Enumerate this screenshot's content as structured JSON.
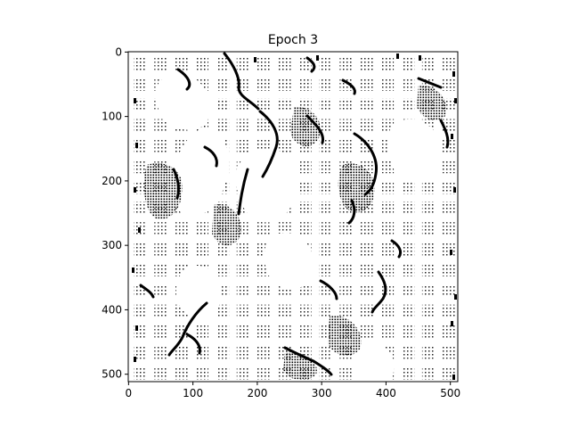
{
  "chart_data": {
    "type": "heatmap",
    "title": "Epoch 3",
    "xlabel": "",
    "ylabel": "",
    "xlim": [
      0,
      511
    ],
    "ylim": [
      511,
      0
    ],
    "origin": "upper",
    "colormap": "binary",
    "grid": false,
    "legend": "none",
    "x_ticks": [
      "0",
      "100",
      "200",
      "300",
      "400",
      "500"
    ],
    "y_ticks": [
      "0",
      "100",
      "200",
      "300",
      "400",
      "500"
    ],
    "image_size": [
      512,
      512
    ],
    "colors": {
      "foreground": "#000000",
      "background": "#ffffff"
    }
  }
}
